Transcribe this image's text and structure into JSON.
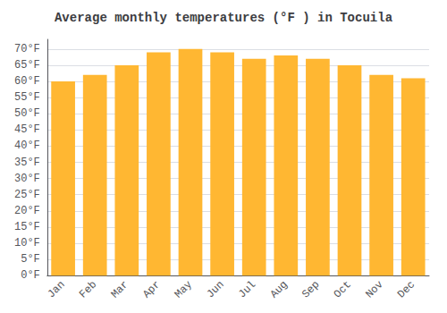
{
  "chart_data": {
    "type": "bar",
    "title": "Average monthly temperatures (°F ) in Tocuila",
    "categories": [
      "Jan",
      "Feb",
      "Mar",
      "Apr",
      "May",
      "Jun",
      "Jul",
      "Aug",
      "Sep",
      "Oct",
      "Nov",
      "Dec"
    ],
    "values": [
      60,
      62,
      65,
      69,
      70,
      69,
      67,
      68,
      67,
      65,
      62,
      61
    ],
    "color": "#FFB732",
    "ylim": [
      0,
      73
    ],
    "yticks": [
      {
        "value": 0,
        "label": "0°F"
      },
      {
        "value": 5,
        "label": "5°F"
      },
      {
        "value": 10,
        "label": "10°F"
      },
      {
        "value": 15,
        "label": "15°F"
      },
      {
        "value": 20,
        "label": "20°F"
      },
      {
        "value": 25,
        "label": "25°F"
      },
      {
        "value": 30,
        "label": "30°F"
      },
      {
        "value": 35,
        "label": "35°F"
      },
      {
        "value": 40,
        "label": "40°F"
      },
      {
        "value": 45,
        "label": "45°F"
      },
      {
        "value": 50,
        "label": "50°F"
      },
      {
        "value": 55,
        "label": "55°F"
      },
      {
        "value": 60,
        "label": "60°F"
      },
      {
        "value": 65,
        "label": "65°F"
      },
      {
        "value": 70,
        "label": "70°F"
      }
    ],
    "grid": true
  }
}
